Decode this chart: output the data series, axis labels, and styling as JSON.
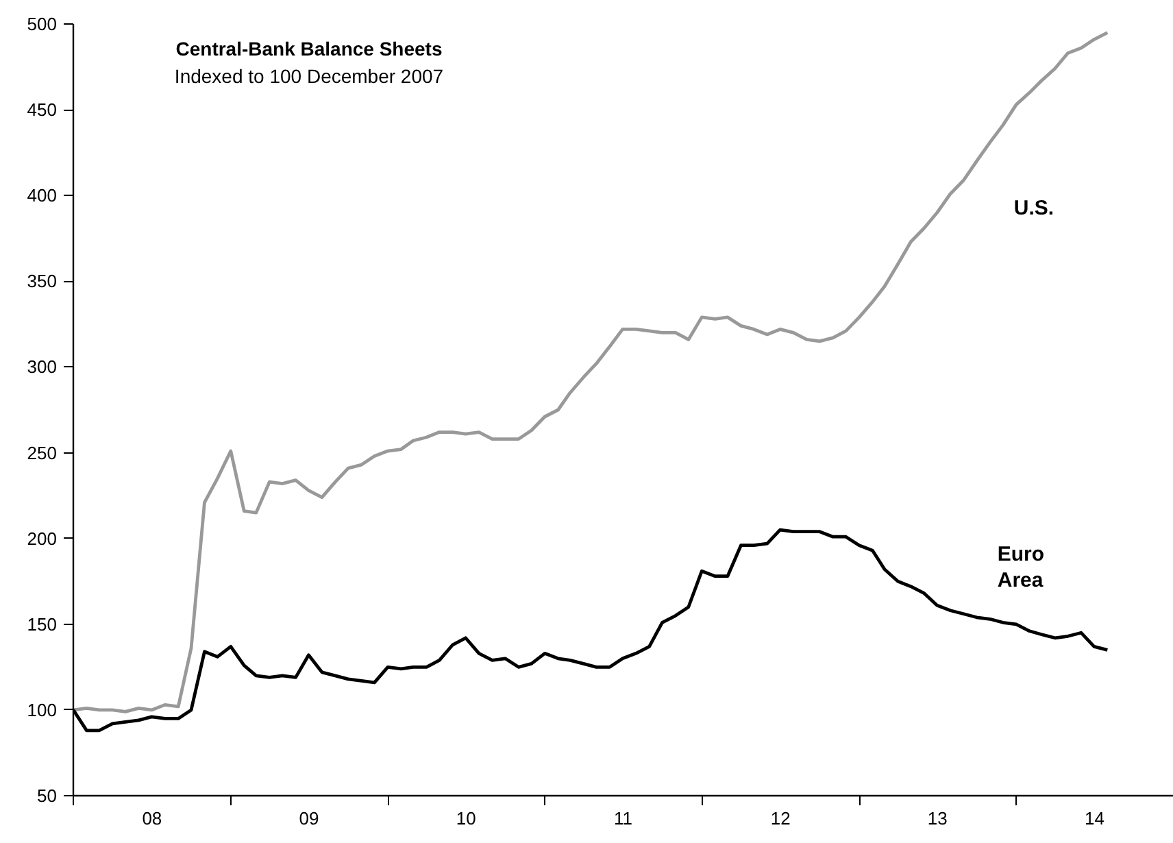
{
  "chart_data": {
    "type": "line",
    "title": "Central-Bank Balance Sheets",
    "subtitle": "Indexed to 100 December 2007",
    "x": [
      "2007-12-31",
      "2008-01-31",
      "2008-02-29",
      "2008-03-31",
      "2008-04-30",
      "2008-05-31",
      "2008-06-30",
      "2008-07-31",
      "2008-08-31",
      "2008-09-30",
      "2008-10-31",
      "2008-11-30",
      "2008-12-31",
      "2009-01-31",
      "2009-02-28",
      "2009-03-31",
      "2009-04-30",
      "2009-05-31",
      "2009-06-30",
      "2009-07-31",
      "2009-08-31",
      "2009-09-30",
      "2009-10-31",
      "2009-11-30",
      "2009-12-31",
      "2010-01-31",
      "2010-02-28",
      "2010-03-31",
      "2010-04-30",
      "2010-05-31",
      "2010-06-30",
      "2010-07-31",
      "2010-08-31",
      "2010-09-30",
      "2010-10-31",
      "2010-11-30",
      "2010-12-31",
      "2011-01-31",
      "2011-02-28",
      "2011-03-31",
      "2011-04-30",
      "2011-05-31",
      "2011-06-30",
      "2011-07-31",
      "2011-08-31",
      "2011-09-30",
      "2011-10-31",
      "2011-11-30",
      "2011-12-31",
      "2012-01-31",
      "2012-02-29",
      "2012-03-31",
      "2012-04-30",
      "2012-05-31",
      "2012-06-30",
      "2012-07-31",
      "2012-08-31",
      "2012-09-30",
      "2012-10-31",
      "2012-11-30",
      "2012-12-31",
      "2013-01-31",
      "2013-02-28",
      "2013-03-31",
      "2013-04-30",
      "2013-05-31",
      "2013-06-30",
      "2013-07-31",
      "2013-08-31",
      "2013-09-30",
      "2013-10-31",
      "2013-11-30",
      "2013-12-31",
      "2014-01-31",
      "2014-02-28",
      "2014-03-31",
      "2014-04-30",
      "2014-05-31",
      "2014-06-30",
      "2014-07-31"
    ],
    "series": [
      {
        "name": "U.S.",
        "color": "#999999",
        "values": [
          100,
          101,
          100,
          100,
          99,
          101,
          100,
          103,
          102,
          136,
          221,
          235,
          251,
          216,
          215,
          233,
          232,
          234,
          228,
          224,
          233,
          241,
          243,
          248,
          251,
          252,
          257,
          259,
          262,
          262,
          261,
          262,
          258,
          258,
          258,
          263,
          271,
          275,
          285,
          294,
          302,
          312,
          322,
          322,
          321,
          320,
          320,
          316,
          329,
          328,
          329,
          324,
          322,
          319,
          322,
          320,
          316,
          315,
          317,
          321,
          329,
          338,
          347,
          360,
          373,
          381,
          390,
          401,
          409,
          420,
          431,
          441,
          453,
          460,
          467,
          474,
          483,
          486,
          491,
          495
        ]
      },
      {
        "name": "Euro Area",
        "color": "#000000",
        "values": [
          100,
          88,
          88,
          92,
          93,
          94,
          96,
          95,
          95,
          100,
          134,
          131,
          137,
          126,
          120,
          119,
          120,
          119,
          132,
          122,
          120,
          118,
          117,
          116,
          125,
          124,
          125,
          125,
          129,
          138,
          142,
          133,
          129,
          130,
          125,
          127,
          133,
          130,
          129,
          127,
          125,
          125,
          130,
          133,
          137,
          151,
          155,
          160,
          181,
          178,
          178,
          196,
          196,
          197,
          205,
          204,
          204,
          204,
          201,
          201,
          196,
          193,
          182,
          175,
          172,
          168,
          161,
          158,
          156,
          154,
          153,
          151,
          150,
          146,
          144,
          142,
          143,
          145,
          137,
          135
        ]
      }
    ],
    "xlim": [
      "2007-12-31",
      "2015-01-01"
    ],
    "xticks": [
      {
        "value": "2008-01-01",
        "label": null
      },
      {
        "value": "2008-07-01",
        "label": "08"
      },
      {
        "value": "2009-01-01",
        "label": null
      },
      {
        "value": "2009-07-01",
        "label": "09"
      },
      {
        "value": "2010-01-01",
        "label": null
      },
      {
        "value": "2010-07-01",
        "label": "10"
      },
      {
        "value": "2011-01-01",
        "label": null
      },
      {
        "value": "2011-07-01",
        "label": "11"
      },
      {
        "value": "2012-01-01",
        "label": null
      },
      {
        "value": "2012-07-01",
        "label": "12"
      },
      {
        "value": "2013-01-01",
        "label": null
      },
      {
        "value": "2013-07-01",
        "label": "13"
      },
      {
        "value": "2014-01-01",
        "label": null
      },
      {
        "value": "2014-07-01",
        "label": "14"
      }
    ],
    "ylim": [
      50,
      500
    ],
    "yticks": [
      50,
      100,
      150,
      200,
      250,
      300,
      350,
      400,
      450,
      500
    ],
    "grid": false,
    "legend": false,
    "line_style": "solid"
  }
}
